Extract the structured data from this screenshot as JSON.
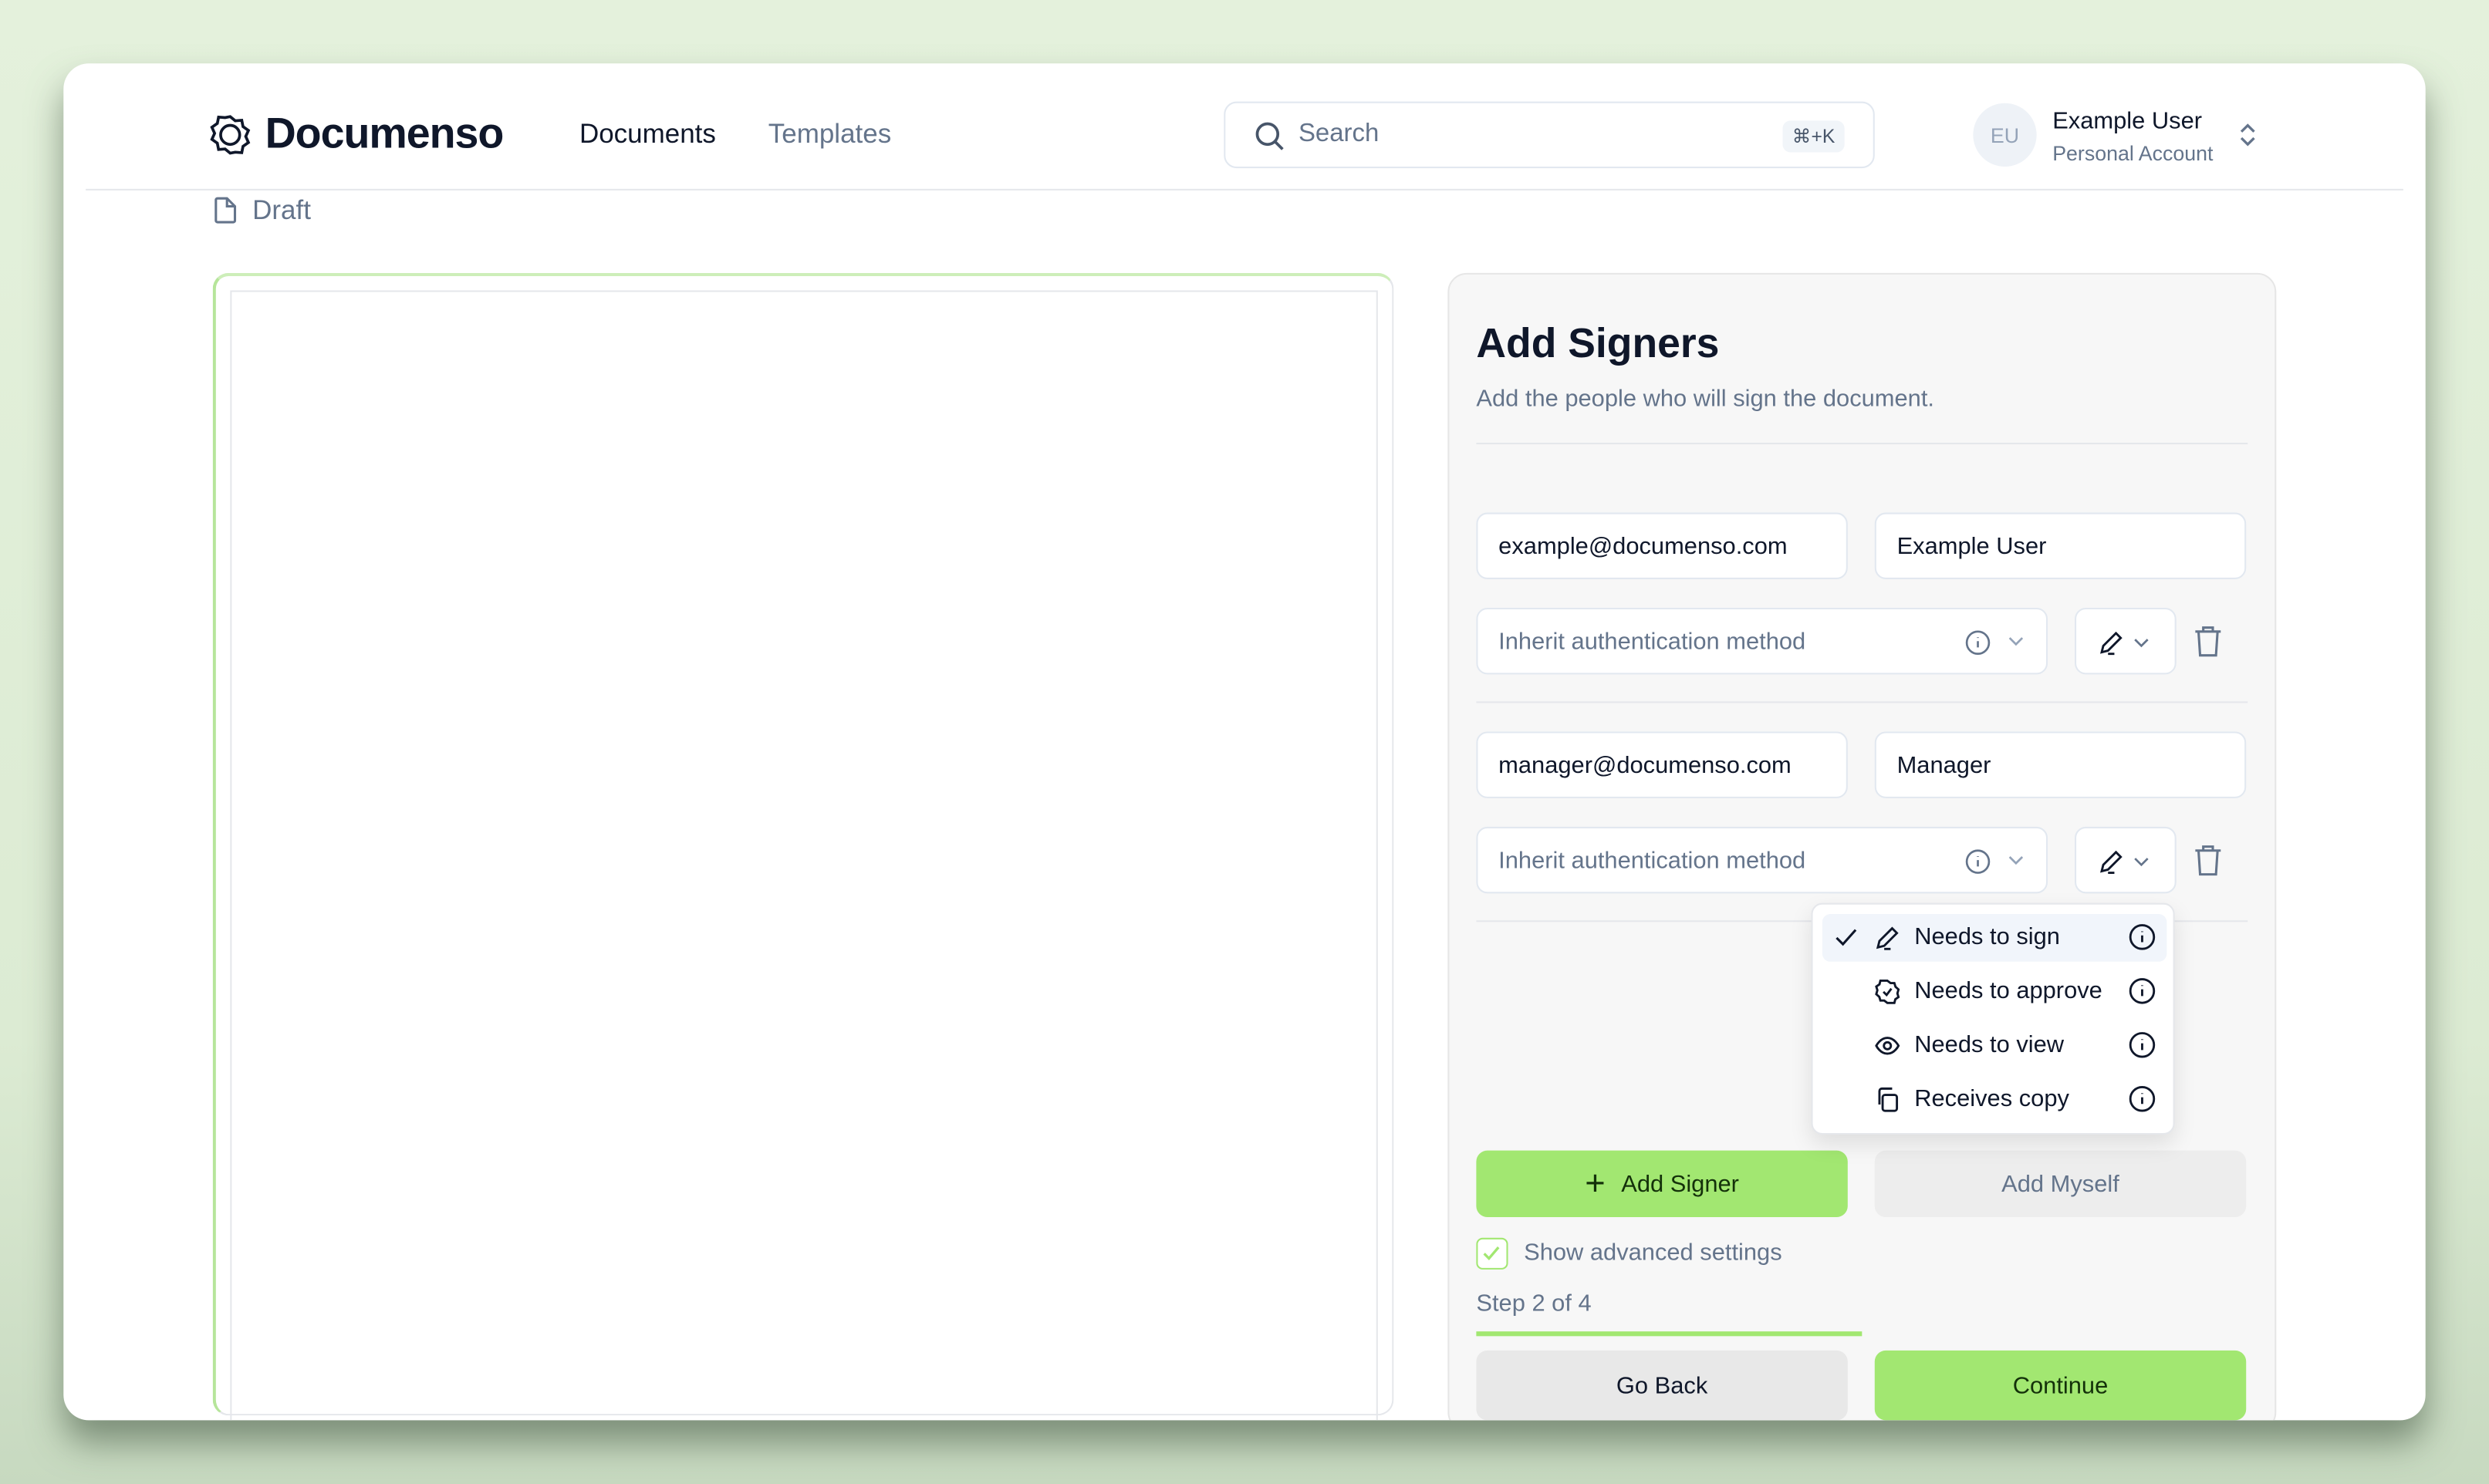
{
  "header": {
    "brand": "Documenso",
    "nav": [
      {
        "label": "Documents",
        "active": true
      },
      {
        "label": "Templates",
        "active": false
      }
    ],
    "search": {
      "placeholder": "Search",
      "shortcut": "⌘+K"
    },
    "user": {
      "initials": "EU",
      "name": "Example User",
      "account": "Personal Account"
    }
  },
  "breadcrumb": {
    "status": "Draft"
  },
  "signers_panel": {
    "title": "Add Signers",
    "subtitle": "Add the people who will sign the document.",
    "signers": [
      {
        "email": "example@documenso.com",
        "name": "Example User",
        "auth": "Inherit authentication method",
        "role_icon": "pen-icon"
      },
      {
        "email": "manager@documenso.com",
        "name": "Manager",
        "auth": "Inherit authentication method",
        "role_icon": "pen-icon"
      }
    ],
    "add_signer": "Add Signer",
    "add_myself": "Add Myself",
    "advanced": "Show advanced settings",
    "advanced_checked": true,
    "step": "Step 2 of 4",
    "progress": 0.5,
    "go_back": "Go Back",
    "continue": "Continue"
  },
  "role_menu": {
    "items": [
      {
        "label": "Needs to sign",
        "icon": "pen-icon",
        "selected": true
      },
      {
        "label": "Needs to approve",
        "icon": "badge-check-icon",
        "selected": false
      },
      {
        "label": "Needs to view",
        "icon": "eye-icon",
        "selected": false
      },
      {
        "label": "Receives copy",
        "icon": "copy-icon",
        "selected": false
      }
    ]
  },
  "colors": {
    "accent": "#a2e771",
    "background": "#e4f1dc"
  }
}
